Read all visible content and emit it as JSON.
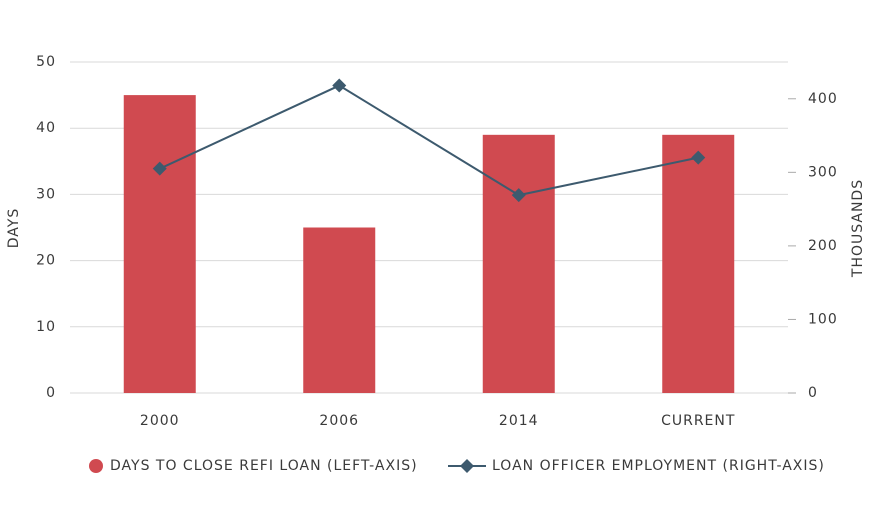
{
  "chart_data": {
    "type": "bar",
    "categories": [
      "2000",
      "2006",
      "2014",
      "CURRENT"
    ],
    "series": [
      {
        "name": "DAYS TO CLOSE REFI LOAN (LEFT-AXIS)",
        "type": "bar",
        "color": "#d04a50",
        "values": [
          45,
          25,
          39,
          39
        ]
      },
      {
        "name": "LOAN OFFICER EMPLOYMENT (RIGHT-AXIS)",
        "type": "line",
        "color": "#3d5a6e",
        "axis": "y2",
        "values": [
          305,
          418,
          269,
          320
        ]
      }
    ],
    "ylabel": "DAYS",
    "y2label": "THOUSANDS",
    "ylim": [
      0,
      50
    ],
    "yticks": [
      0,
      10,
      20,
      30,
      40,
      50
    ],
    "y2lim": [
      0,
      450
    ],
    "y2ticks": [
      0,
      100,
      200,
      300,
      400
    ],
    "grid": true,
    "legend": "bottom"
  }
}
